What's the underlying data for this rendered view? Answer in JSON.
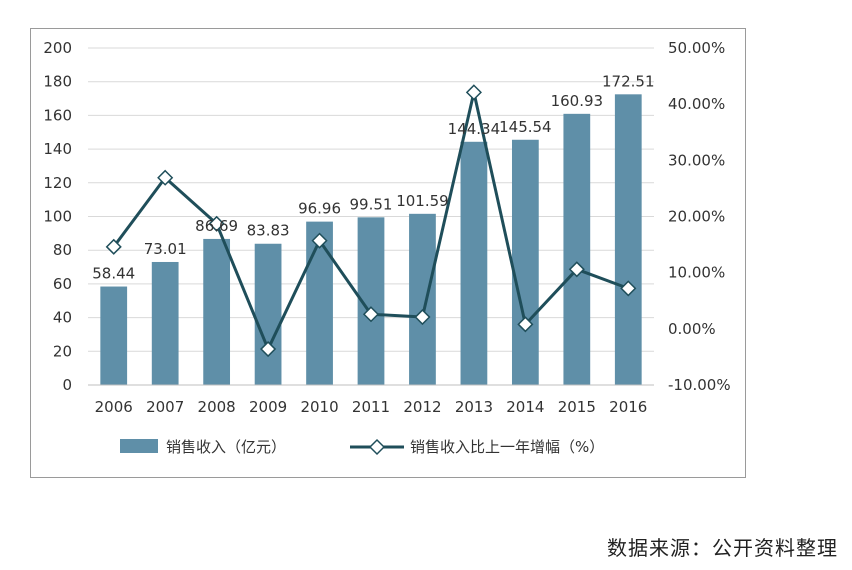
{
  "chart_data": {
    "type": "bar+line",
    "categories": [
      "2006",
      "2007",
      "2008",
      "2009",
      "2010",
      "2011",
      "2012",
      "2013",
      "2014",
      "2015",
      "2016"
    ],
    "series": [
      {
        "name": "销售收入（亿元）",
        "type": "bar",
        "axis": "left",
        "values": [
          58.44,
          73.01,
          86.69,
          83.83,
          96.96,
          99.51,
          101.59,
          144.34,
          145.54,
          160.93,
          172.51
        ],
        "labels": [
          "58.44",
          "73.01",
          "86.69",
          "83.83",
          "96.96",
          "99.51",
          "101.59",
          "144.34",
          "145.54",
          "160.93",
          "172.51"
        ]
      },
      {
        "name": "销售收入比上一年增幅（%）",
        "type": "line",
        "axis": "right",
        "values": [
          14.6,
          26.9,
          18.7,
          -3.6,
          15.7,
          2.6,
          2.1,
          42.1,
          0.8,
          10.6,
          7.2
        ]
      }
    ],
    "ylim_left": [
      0,
      200
    ],
    "left_ticks": [
      "0",
      "20",
      "40",
      "60",
      "80",
      "100",
      "120",
      "140",
      "160",
      "180",
      "200"
    ],
    "ylim_right": [
      -10,
      50
    ],
    "right_ticks": [
      "-10.00%",
      "0.00%",
      "10.00%",
      "20.00%",
      "30.00%",
      "40.00%",
      "50.00%"
    ],
    "grid": true,
    "legend_position": "bottom",
    "colors": {
      "bar": "#5f8fa8",
      "line": "#1f4e5a",
      "marker_fill": "#ffffff",
      "grid": "#d9d9d9"
    }
  },
  "source_text": "数据来源：公开资料整理"
}
